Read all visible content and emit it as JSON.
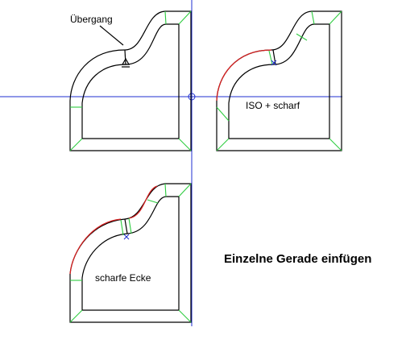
{
  "labels": {
    "uebergang": "Übergang",
    "iso_scharf": "ISO + scharf",
    "scharfe_ecke": "scharfe Ecke",
    "title": "Einzelne Gerade einfügen"
  },
  "colors": {
    "outline": "#000000",
    "miter_lines": "#2ecc40",
    "sharp_edge": "#d42020",
    "axes": "#1f2fd0",
    "background": "#ffffff"
  },
  "panels": [
    {
      "id": "panel-uebergang",
      "label_key": "uebergang"
    },
    {
      "id": "panel-iso-scharf",
      "label_key": "iso_scharf"
    },
    {
      "id": "panel-scharfe-ecke",
      "label_key": "scharfe_ecke"
    }
  ]
}
